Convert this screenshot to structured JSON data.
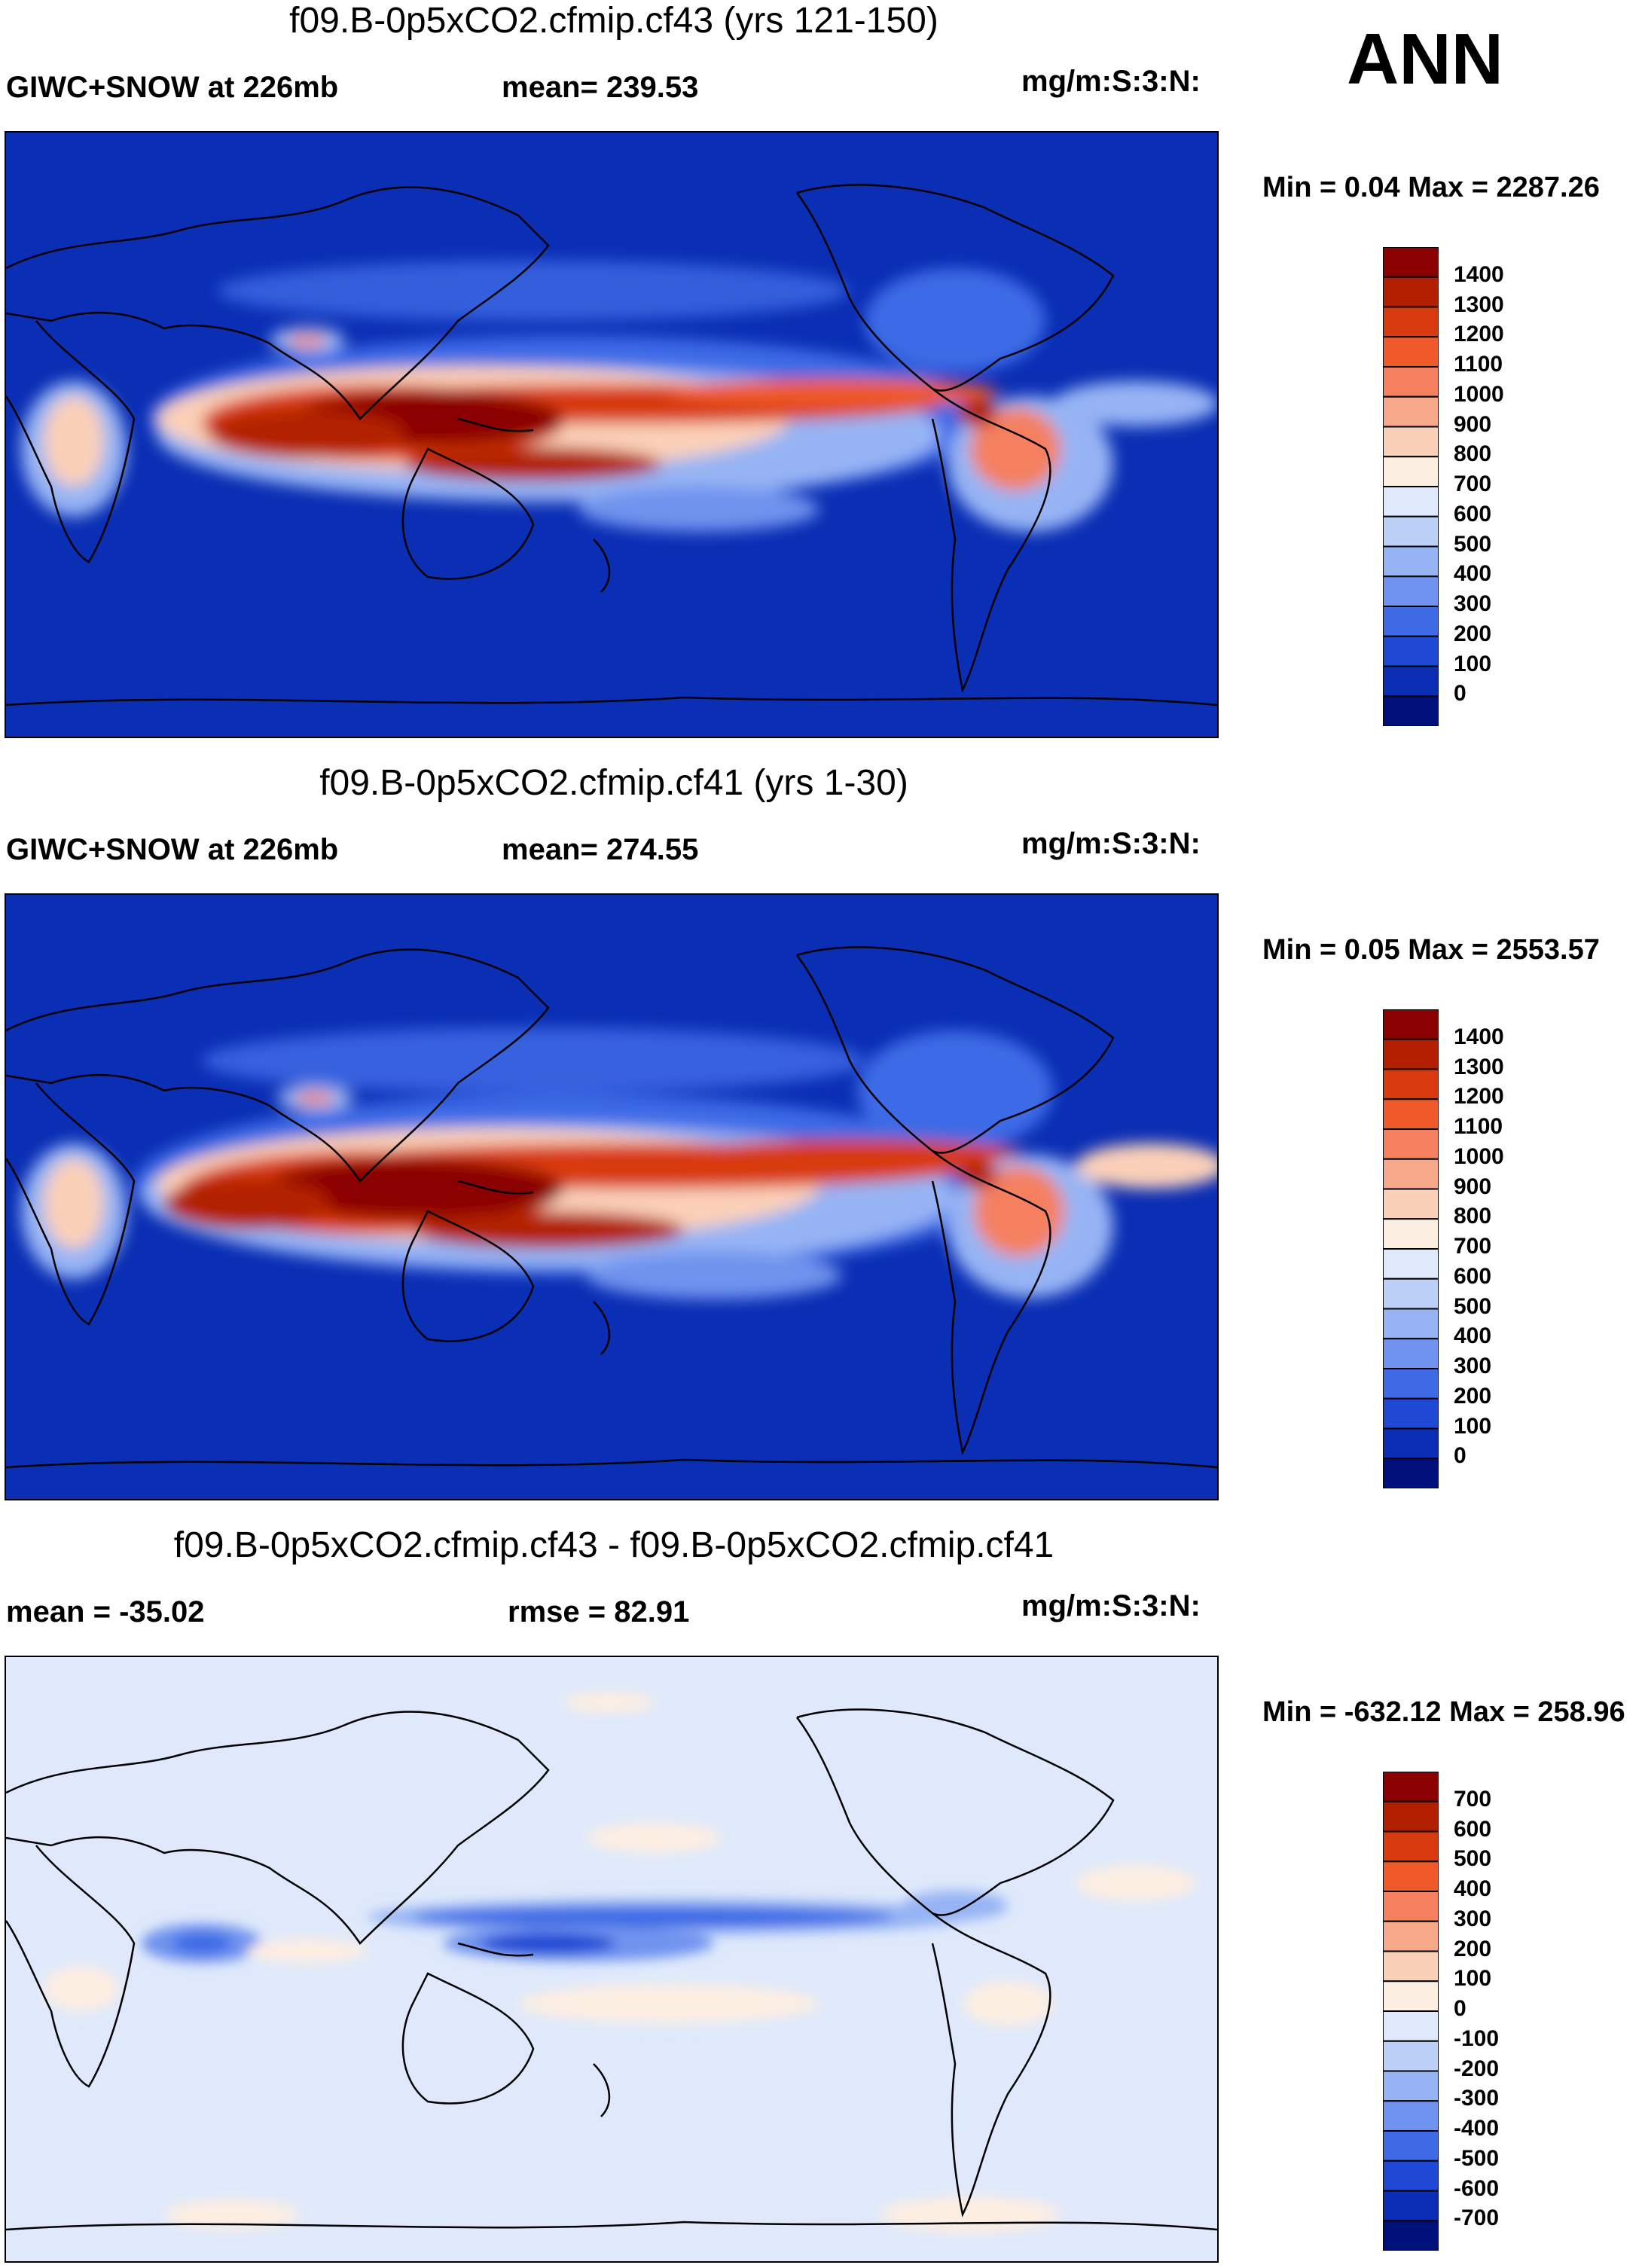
{
  "season": "ANN",
  "panels": [
    {
      "title": "f09.B-0p5xCO2.cfmip.cf43 (yrs 121-150)",
      "left_label": "GIWC+SNOW at 226mb",
      "mid_label": "mean= 239.53",
      "units": "mg/m:S:3:N:",
      "minmax": "Min =   0.04 Max = 2287.26",
      "kind": "field"
    },
    {
      "title": "f09.B-0p5xCO2.cfmip.cf41 (yrs 1-30)",
      "left_label": "GIWC+SNOW at 226mb",
      "mid_label": "mean= 274.55",
      "units": "mg/m:S:3:N:",
      "minmax": "Min =   0.05 Max = 2553.57",
      "kind": "field"
    },
    {
      "title": "f09.B-0p5xCO2.cfmip.cf43 - f09.B-0p5xCO2.cfmip.cf41",
      "left_label": "mean = -35.02",
      "mid_label": "rmse =  82.91",
      "units": "mg/m:S:3:N:",
      "minmax": "Min = -632.12 Max = 258.96",
      "kind": "diff"
    }
  ],
  "chart_data": [
    {
      "type": "heatmap",
      "title": "f09.B-0p5xCO2.cfmip.cf43 (yrs 121-150)",
      "variable": "GIWC+SNOW at 226mb",
      "units": "mg/m:S:3:N:",
      "mean": 239.53,
      "min": 0.04,
      "max": 2287.26,
      "colorbar_levels": [
        "1400",
        "1300",
        "1200",
        "1100",
        "1000",
        "900",
        "800",
        "700",
        "600",
        "500",
        "400",
        "300",
        "200",
        "100",
        "0"
      ],
      "colorbar_colors": [
        "#8b0000",
        "#b22000",
        "#d83a10",
        "#f05a2a",
        "#f48060",
        "#f7a888",
        "#fbd0b8",
        "#fdeee2",
        "#dfe9fb",
        "#bcd0f8",
        "#96b4f4",
        "#6f93ee",
        "#3e6ae6",
        "#1f48d4",
        "#0a2eb4",
        "#00107a"
      ]
    },
    {
      "type": "heatmap",
      "title": "f09.B-0p5xCO2.cfmip.cf41 (yrs 1-30)",
      "variable": "GIWC+SNOW at 226mb",
      "units": "mg/m:S:3:N:",
      "mean": 274.55,
      "min": 0.05,
      "max": 2553.57,
      "colorbar_levels": [
        "1400",
        "1300",
        "1200",
        "1100",
        "1000",
        "900",
        "800",
        "700",
        "600",
        "500",
        "400",
        "300",
        "200",
        "100",
        "0"
      ],
      "colorbar_colors": [
        "#8b0000",
        "#b22000",
        "#d83a10",
        "#f05a2a",
        "#f48060",
        "#f7a888",
        "#fbd0b8",
        "#fdeee2",
        "#dfe9fb",
        "#bcd0f8",
        "#96b4f4",
        "#6f93ee",
        "#3e6ae6",
        "#1f48d4",
        "#0a2eb4",
        "#00107a"
      ]
    },
    {
      "type": "heatmap",
      "title": "f09.B-0p5xCO2.cfmip.cf43 - f09.B-0p5xCO2.cfmip.cf41",
      "units": "mg/m:S:3:N:",
      "mean": -35.02,
      "rmse": 82.91,
      "min": -632.12,
      "max": 258.96,
      "colorbar_levels": [
        "700",
        "600",
        "500",
        "400",
        "300",
        "200",
        "100",
        "0",
        "-100",
        "-200",
        "-300",
        "-400",
        "-500",
        "-600",
        "-700"
      ],
      "colorbar_colors": [
        "#8b0000",
        "#b22000",
        "#d83a10",
        "#f05a2a",
        "#f48060",
        "#f7a888",
        "#fbd0b8",
        "#fdeee2",
        "#dfe9fb",
        "#bcd0f8",
        "#96b4f4",
        "#6f93ee",
        "#3e6ae6",
        "#1f48d4",
        "#0a2eb4",
        "#00107a"
      ]
    }
  ]
}
